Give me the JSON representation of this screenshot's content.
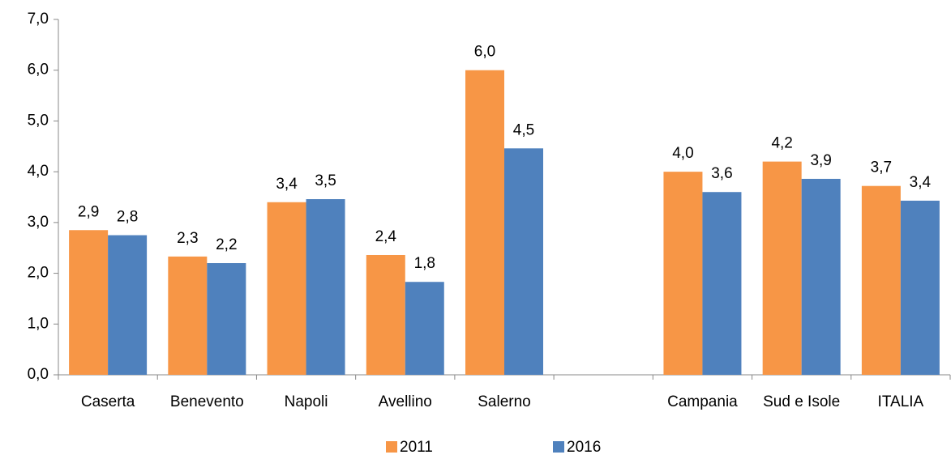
{
  "chart_data": {
    "type": "bar",
    "categories": [
      "Caserta",
      "Benevento",
      "Napoli",
      "Avellino",
      "Salerno",
      null,
      "Campania",
      "Sud e Isole",
      "ITALIA"
    ],
    "series": [
      {
        "name": "2011",
        "color": "#f79646",
        "values": [
          2.85,
          2.33,
          3.4,
          2.36,
          6.0,
          null,
          4.0,
          4.2,
          3.72
        ],
        "value_labels": [
          "2,9",
          "2,3",
          "3,4",
          "2,4",
          "6,0",
          null,
          "4,0",
          "4,2",
          "3,7"
        ]
      },
      {
        "name": "2016",
        "color": "#4f81bd",
        "values": [
          2.75,
          2.2,
          3.46,
          1.83,
          4.46,
          null,
          3.6,
          3.86,
          3.43
        ],
        "value_labels": [
          "2,8",
          "2,2",
          "3,5",
          "1,8",
          "4,5",
          null,
          "3,6",
          "3,9",
          "3,4"
        ]
      }
    ],
    "ylim": [
      0,
      7
    ],
    "yticks": [
      {
        "value": 0,
        "label": "0,0"
      },
      {
        "value": 1,
        "label": "1,0"
      },
      {
        "value": 2,
        "label": "2,0"
      },
      {
        "value": 3,
        "label": "3,0"
      },
      {
        "value": 4,
        "label": "4,0"
      },
      {
        "value": 5,
        "label": "5,0"
      },
      {
        "value": 6,
        "label": "6,0"
      },
      {
        "value": 7,
        "label": "7,0"
      }
    ],
    "legend": "bottom"
  }
}
